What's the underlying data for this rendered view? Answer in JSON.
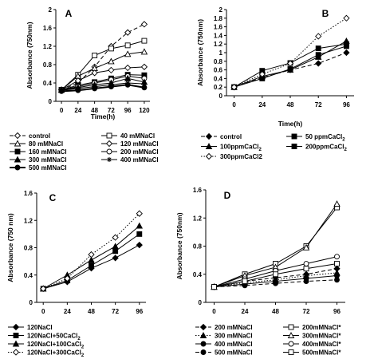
{
  "chart_data": [
    {
      "panel": "A",
      "type": "line",
      "xlabel": "Time(h)",
      "ylabel": "Absorbance (750nm)",
      "x": [
        0,
        24,
        48,
        72,
        96,
        120
      ],
      "x_ticks": [
        "0",
        "24",
        "48",
        "72",
        "96",
        "120"
      ],
      "y_ticks": [
        "0",
        "0.4",
        "0.8",
        "1.2",
        "1.6",
        "2"
      ],
      "ylim": [
        0,
        2
      ],
      "legend_columns": 2,
      "series": [
        {
          "name": "control",
          "dash": "dash",
          "marker": "diamond-open",
          "values": [
            0.25,
            0.4,
            0.75,
            1.2,
            1.5,
            1.68
          ]
        },
        {
          "name": "40 mMNaCl",
          "dash": "solid",
          "marker": "square-open",
          "values": [
            0.25,
            0.58,
            1.0,
            1.15,
            1.22,
            1.32
          ]
        },
        {
          "name": "80 mMNaCl",
          "dash": "solid",
          "marker": "triangle-open",
          "values": [
            0.25,
            0.55,
            0.72,
            0.87,
            1.03,
            1.08
          ]
        },
        {
          "name": "120 mMNaCl",
          "dash": "solid",
          "marker": "diamond-open",
          "values": [
            0.25,
            0.45,
            0.62,
            0.68,
            0.73,
            0.75
          ]
        },
        {
          "name": "160 mMNaCl",
          "dash": "solid",
          "marker": "square-filled",
          "values": [
            0.25,
            0.35,
            0.42,
            0.5,
            0.58,
            0.57
          ]
        },
        {
          "name": "200 mMNaCl",
          "dash": "solid",
          "marker": "circle-open",
          "values": [
            0.25,
            0.32,
            0.4,
            0.47,
            0.55,
            0.5
          ]
        },
        {
          "name": "300 mMNaCl",
          "dash": "solid",
          "marker": "triangle-filled",
          "values": [
            0.25,
            0.3,
            0.36,
            0.4,
            0.5,
            0.42
          ]
        },
        {
          "name": "400 mMNaCl",
          "dash": "solid",
          "marker": "star",
          "values": [
            0.24,
            0.28,
            0.32,
            0.36,
            0.4,
            0.38
          ]
        },
        {
          "name": "500 mMNaCl",
          "dash": "solid-thick",
          "marker": "circle-filled",
          "values": [
            0.22,
            0.24,
            0.28,
            0.32,
            0.36,
            0.3
          ]
        }
      ]
    },
    {
      "panel": "B",
      "type": "line",
      "xlabel": "Time(h)",
      "ylabel": "Absorbance (750nm)",
      "x": [
        0,
        24,
        48,
        72,
        96
      ],
      "x_ticks": [
        "0",
        "24",
        "48",
        "72",
        "96"
      ],
      "y_ticks": [
        "0",
        "0.2",
        "0.4",
        "0.6",
        "0.8",
        "1",
        "1.2",
        "1.4",
        "1.6",
        "1.8",
        "2"
      ],
      "ylim": [
        0,
        2
      ],
      "legend_columns": 2,
      "series": [
        {
          "name": "control",
          "dash": "dash",
          "marker": "diamond-filled",
          "values": [
            0.2,
            0.42,
            0.6,
            0.75,
            1.0
          ]
        },
        {
          "name": "50 ppmCaCl",
          "name_sub": "2",
          "dash": "solid",
          "marker": "square-filled",
          "values": [
            0.2,
            0.58,
            0.76,
            1.1,
            1.2
          ]
        },
        {
          "name": "100ppmCaCl",
          "name_sub": "2",
          "dash": "solid",
          "marker": "triangle-filled",
          "values": [
            0.2,
            0.45,
            0.6,
            0.9,
            1.27
          ]
        },
        {
          "name": "200ppmCaCl",
          "name_sub": "2",
          "dash": "solid",
          "marker": "square-filled",
          "values": [
            0.2,
            0.4,
            0.62,
            0.95,
            1.15
          ]
        },
        {
          "name": "300ppmCaCl2",
          "dash": "dot",
          "marker": "diamond-open",
          "values": [
            0.2,
            0.5,
            0.75,
            1.38,
            1.8
          ]
        }
      ]
    },
    {
      "panel": "C",
      "type": "line",
      "xlabel": "",
      "ylabel": "Absorbance (750 nm)",
      "x": [
        0,
        24,
        48,
        72,
        96
      ],
      "x_ticks": [
        "0",
        "24",
        "48",
        "72",
        "96"
      ],
      "y_ticks": [
        "0",
        "0.4",
        "0.8",
        "1.2",
        "1.6"
      ],
      "ylim": [
        0,
        1.6
      ],
      "legend_columns": 1,
      "series": [
        {
          "name": "120NaCl",
          "dash": "solid",
          "marker": "diamond-filled",
          "values": [
            0.2,
            0.3,
            0.5,
            0.65,
            0.84
          ]
        },
        {
          "name": "120NaCl+50CaCl",
          "name_sub": "2",
          "dash": "solid",
          "marker": "square-filled",
          "values": [
            0.2,
            0.32,
            0.54,
            0.75,
            1.0
          ]
        },
        {
          "name": "120NaCl+100CaCl",
          "name_sub": "2",
          "dash": "solid",
          "marker": "triangle-filled",
          "values": [
            0.2,
            0.4,
            0.62,
            0.82,
            1.12
          ]
        },
        {
          "name": "120NaCl+300CaCl",
          "name_sub": "2",
          "dash": "dot",
          "marker": "diamond-open",
          "values": [
            0.2,
            0.35,
            0.7,
            0.95,
            1.3
          ]
        }
      ]
    },
    {
      "panel": "D",
      "type": "line",
      "xlabel": "",
      "ylabel": "Absorbance (750nm)",
      "x": [
        0,
        24,
        48,
        72,
        96
      ],
      "x_ticks": [
        "0",
        "24",
        "48",
        "72",
        "96"
      ],
      "y_ticks": [
        "0",
        "0.4",
        "0.8",
        "1.2",
        "1.6"
      ],
      "ylim": [
        0,
        1.6
      ],
      "legend_columns": 2,
      "series": [
        {
          "name": "200 mMNaCl",
          "dash": "dash",
          "marker": "diamond-filled",
          "values": [
            0.22,
            0.3,
            0.35,
            0.4,
            0.48
          ]
        },
        {
          "name": "200mMNaCl*",
          "dash": "solid",
          "marker": "square-open",
          "values": [
            0.22,
            0.4,
            0.55,
            0.8,
            1.35
          ]
        },
        {
          "name": "300 mMNaCl",
          "dash": "dot",
          "marker": "triangle-filled",
          "values": [
            0.22,
            0.28,
            0.32,
            0.38,
            0.42
          ]
        },
        {
          "name": "300mMNaCl*",
          "dash": "solid",
          "marker": "triangle-open",
          "values": [
            0.22,
            0.38,
            0.5,
            0.78,
            1.4
          ]
        },
        {
          "name": "400 mMNaCl",
          "dash": "solid",
          "marker": "circle-filled",
          "values": [
            0.22,
            0.26,
            0.3,
            0.34,
            0.38
          ]
        },
        {
          "name": "400mMNaCl*",
          "dash": "solid",
          "marker": "circle-open",
          "values": [
            0.22,
            0.33,
            0.45,
            0.55,
            0.65
          ]
        },
        {
          "name": "500 mMNaCl",
          "dash": "dash",
          "marker": "circle-filled",
          "values": [
            0.22,
            0.24,
            0.27,
            0.3,
            0.32
          ]
        },
        {
          "name": "500mMNaCl*",
          "dash": "solid",
          "marker": "square-open",
          "values": [
            0.22,
            0.3,
            0.4,
            0.48,
            0.55
          ]
        }
      ]
    }
  ]
}
